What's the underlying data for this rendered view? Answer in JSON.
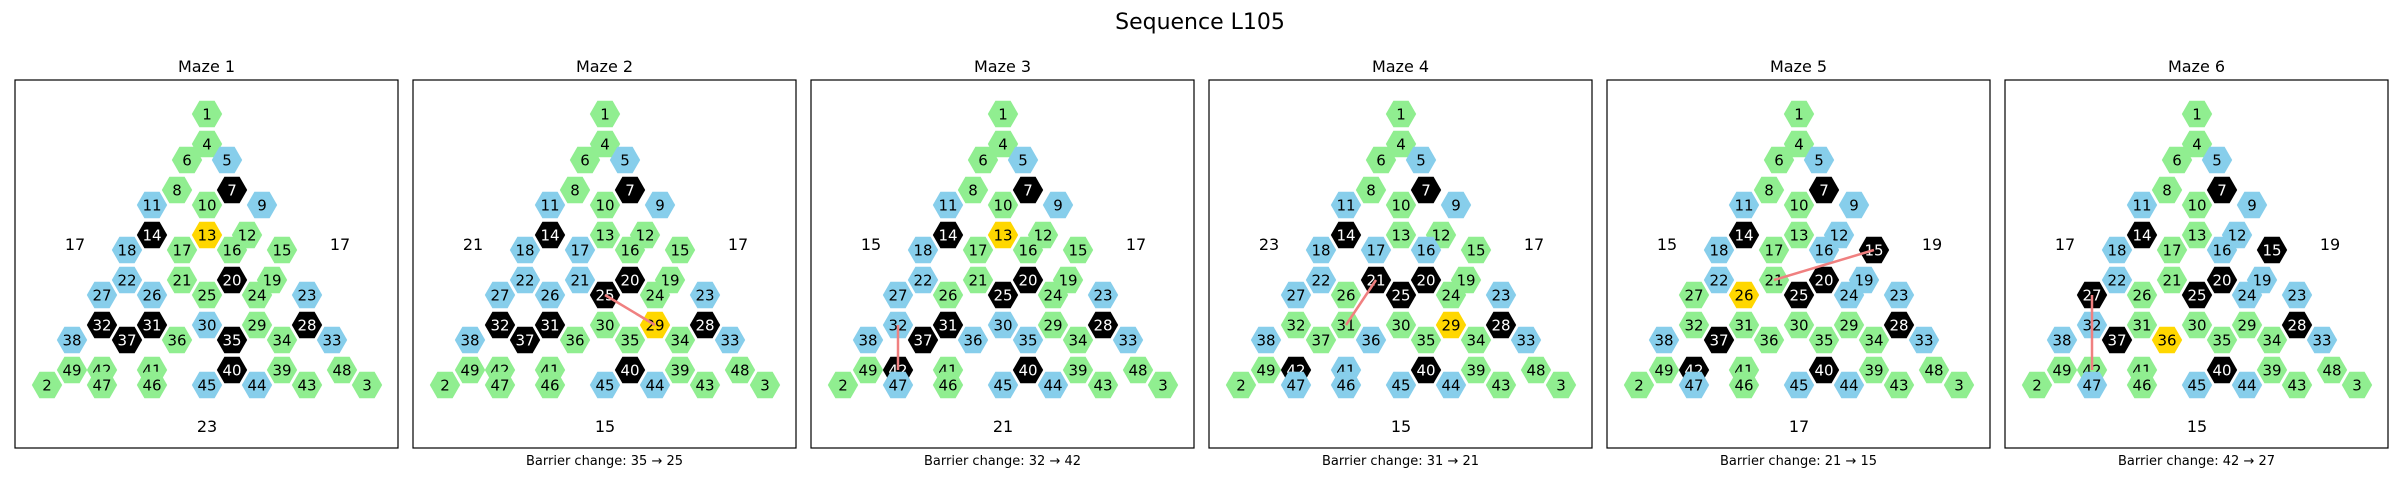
{
  "title": "Sequence L105",
  "colors": {
    "green": "#90EE90",
    "blue": "#87CEEB",
    "black": "#000000",
    "gold": "#FFD700",
    "path": "#F08080"
  },
  "mazes": [
    {
      "title": "Maze 1",
      "barrier_change": "",
      "left_label": "17",
      "right_label": "17",
      "bottom_label": "23",
      "blue": [
        5,
        9,
        11,
        18,
        22,
        27,
        38,
        23,
        33,
        26,
        30,
        45,
        44
      ],
      "black": [
        7,
        14,
        20,
        32,
        37,
        31,
        35,
        28,
        40
      ],
      "gold": [
        13
      ],
      "path": []
    },
    {
      "title": "Maze 2",
      "barrier_change": "Barrier change: 35 → 25",
      "left_label": "21",
      "right_label": "17",
      "bottom_label": "15",
      "blue": [
        5,
        9,
        11,
        18,
        22,
        27,
        38,
        23,
        33,
        17,
        21,
        45,
        44,
        26
      ],
      "black": [
        7,
        14,
        20,
        32,
        37,
        31,
        25,
        28,
        40
      ],
      "gold": [
        29
      ],
      "path": [
        25,
        29
      ]
    },
    {
      "title": "Maze 3",
      "barrier_change": "Barrier change: 32 → 42",
      "left_label": "15",
      "right_label": "17",
      "bottom_label": "21",
      "blue": [
        5,
        9,
        11,
        18,
        22,
        27,
        38,
        23,
        33,
        32,
        47,
        45,
        44,
        36,
        30,
        35
      ],
      "black": [
        7,
        14,
        20,
        37,
        31,
        25,
        28,
        40,
        42
      ],
      "gold": [
        13
      ],
      "path": [
        32,
        42
      ]
    },
    {
      "title": "Maze 4",
      "barrier_change": "Barrier change: 31 → 21",
      "left_label": "23",
      "right_label": "17",
      "bottom_label": "15",
      "blue": [
        5,
        9,
        11,
        18,
        17,
        22,
        27,
        38,
        23,
        33,
        47,
        45,
        44,
        36,
        41,
        46,
        16
      ],
      "black": [
        7,
        14,
        21,
        20,
        25,
        28,
        40,
        42
      ],
      "gold": [
        29
      ],
      "path": [
        31,
        21
      ]
    },
    {
      "title": "Maze 5",
      "barrier_change": "Barrier change: 21 → 15",
      "left_label": "15",
      "right_label": "19",
      "bottom_label": "17",
      "blue": [
        5,
        9,
        11,
        18,
        22,
        38,
        23,
        33,
        12,
        16,
        19,
        24,
        45,
        44,
        47
      ],
      "black": [
        7,
        14,
        15,
        20,
        25,
        37,
        28,
        40,
        42
      ],
      "gold": [
        26
      ],
      "path": [
        21,
        15
      ]
    },
    {
      "title": "Maze 6",
      "barrier_change": "Barrier change: 42 → 27",
      "left_label": "17",
      "right_label": "19",
      "bottom_label": "15",
      "blue": [
        5,
        9,
        11,
        18,
        22,
        38,
        23,
        33,
        12,
        16,
        19,
        24,
        45,
        44,
        32,
        47
      ],
      "black": [
        7,
        14,
        15,
        20,
        25,
        27,
        37,
        28,
        40
      ],
      "gold": [
        36
      ],
      "path": [
        42,
        27
      ]
    }
  ]
}
